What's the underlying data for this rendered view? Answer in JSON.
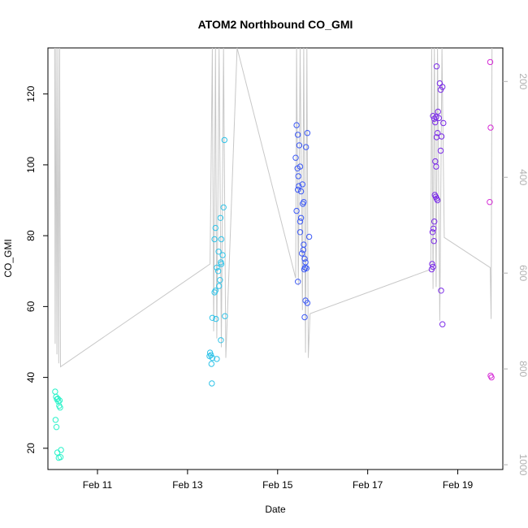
{
  "chart_data": {
    "type": "scatter",
    "title": "ATOM2 Northbound CO_GMI",
    "xlabel": "Date",
    "ylabel": "CO_GMI",
    "x_tick_labels": [
      {
        "day": 11,
        "label": "Feb 11"
      },
      {
        "day": 13,
        "label": "Feb 13"
      },
      {
        "day": 15,
        "label": "Feb 15"
      },
      {
        "day": 17,
        "label": "Feb 17"
      },
      {
        "day": 19,
        "label": "Feb 19"
      }
    ],
    "xlim": [
      9.9,
      20.0
    ],
    "ylim": [
      14,
      133
    ],
    "y_ticks": [
      20,
      40,
      60,
      80,
      100,
      120
    ],
    "y2_label": "",
    "y2_ticks": [
      200,
      400,
      600,
      800,
      1000
    ],
    "y2_lim": [
      1010,
      130
    ],
    "y2_color": "#b0b0b0",
    "grid": false,
    "point_style": "open-circle",
    "series": [
      {
        "color": "#29f2c9",
        "points": [
          [
            10.06,
            36.0
          ],
          [
            10.08,
            34.5
          ],
          [
            10.1,
            33.8
          ],
          [
            10.12,
            34.0
          ],
          [
            10.07,
            28.0
          ],
          [
            10.09,
            26.0
          ],
          [
            10.13,
            33.2
          ],
          [
            10.15,
            32.0
          ],
          [
            10.17,
            31.5
          ],
          [
            10.16,
            33.5
          ],
          [
            10.11,
            18.8
          ],
          [
            10.19,
            19.5
          ],
          [
            10.14,
            17.3
          ],
          [
            10.18,
            17.5
          ]
        ]
      },
      {
        "color": "#2fc3e8",
        "points": [
          [
            13.5,
            47.0
          ],
          [
            13.52,
            46.3
          ],
          [
            13.55,
            45.5
          ],
          [
            13.49,
            46.0
          ],
          [
            13.53,
            43.8
          ],
          [
            13.54,
            38.3
          ],
          [
            13.65,
            45.2
          ],
          [
            13.55,
            56.8
          ],
          [
            13.63,
            56.5
          ],
          [
            13.6,
            64.0
          ],
          [
            13.62,
            64.5
          ],
          [
            13.65,
            71.0
          ],
          [
            13.68,
            70.0
          ],
          [
            13.7,
            65.8
          ],
          [
            13.72,
            67.5
          ],
          [
            13.74,
            72.5
          ],
          [
            13.75,
            72.0
          ],
          [
            13.78,
            74.5
          ],
          [
            13.6,
            79.0
          ],
          [
            13.62,
            82.2
          ],
          [
            13.75,
            79.0
          ],
          [
            13.73,
            85.0
          ],
          [
            13.8,
            88.0
          ],
          [
            13.82,
            107.0
          ],
          [
            13.74,
            50.5
          ],
          [
            13.83,
            57.3
          ],
          [
            13.69,
            75.5
          ]
        ]
      },
      {
        "color": "#3d5af5",
        "points": [
          [
            15.4,
            102.0
          ],
          [
            15.42,
            111.2
          ],
          [
            15.45,
            108.5
          ],
          [
            15.48,
            105.5
          ],
          [
            15.5,
            99.5
          ],
          [
            15.44,
            99.0
          ],
          [
            15.46,
            96.8
          ],
          [
            15.47,
            94.0
          ],
          [
            15.45,
            93.0
          ],
          [
            15.55,
            94.5
          ],
          [
            15.52,
            92.5
          ],
          [
            15.58,
            89.5
          ],
          [
            15.56,
            89.0
          ],
          [
            15.63,
            105.0
          ],
          [
            15.66,
            109.0
          ],
          [
            15.42,
            87.0
          ],
          [
            15.5,
            84.0
          ],
          [
            15.52,
            85.0
          ],
          [
            15.5,
            81.0
          ],
          [
            15.58,
            77.5
          ],
          [
            15.54,
            75.0
          ],
          [
            15.6,
            73.5
          ],
          [
            15.62,
            72.5
          ],
          [
            15.59,
            70.5
          ],
          [
            15.61,
            71.0
          ],
          [
            15.64,
            70.8
          ],
          [
            15.57,
            76.0
          ],
          [
            15.7,
            79.7
          ],
          [
            15.45,
            67.0
          ],
          [
            15.62,
            61.7
          ],
          [
            15.66,
            61.0
          ],
          [
            15.6,
            57.0
          ]
        ]
      },
      {
        "color": "#7a2ae8",
        "points": [
          [
            18.53,
            127.8
          ],
          [
            18.6,
            123.0
          ],
          [
            18.62,
            121.2
          ],
          [
            18.66,
            122.0
          ],
          [
            18.45,
            113.8
          ],
          [
            18.48,
            113.0
          ],
          [
            18.5,
            112.0
          ],
          [
            18.52,
            113.5
          ],
          [
            18.56,
            115.0
          ],
          [
            18.58,
            113.2
          ],
          [
            18.68,
            111.8
          ],
          [
            18.55,
            109.0
          ],
          [
            18.53,
            107.8
          ],
          [
            18.64,
            108.0
          ],
          [
            18.62,
            104.0
          ],
          [
            18.5,
            101.0
          ],
          [
            18.52,
            99.5
          ],
          [
            18.49,
            91.5
          ],
          [
            18.51,
            91.0
          ],
          [
            18.53,
            90.5
          ],
          [
            18.48,
            84.0
          ],
          [
            18.46,
            82.0
          ],
          [
            18.44,
            81.0
          ],
          [
            18.47,
            78.5
          ],
          [
            18.43,
            72.0
          ],
          [
            18.45,
            71.2
          ],
          [
            18.42,
            70.5
          ],
          [
            18.63,
            64.5
          ],
          [
            18.66,
            55.0
          ],
          [
            18.55,
            90.0
          ]
        ]
      },
      {
        "color": "#d62bd6",
        "points": [
          [
            19.72,
            129.0
          ],
          [
            19.73,
            110.5
          ],
          [
            19.71,
            89.5
          ],
          [
            19.73,
            40.5
          ],
          [
            19.75,
            40.0
          ]
        ]
      }
    ],
    "line": {
      "color": "#c8c8c8",
      "points": [
        [
          10.05,
          133
        ],
        [
          10.06,
          49.5
        ],
        [
          10.08,
          133
        ],
        [
          10.1,
          46.5
        ],
        [
          10.12,
          133
        ],
        [
          10.14,
          44.0
        ],
        [
          10.16,
          133
        ],
        [
          10.18,
          43.0
        ],
        [
          13.5,
          72.0
        ],
        [
          13.55,
          133
        ],
        [
          13.58,
          53.0
        ],
        [
          13.62,
          133
        ],
        [
          13.65,
          51.0
        ],
        [
          13.7,
          133
        ],
        [
          13.75,
          48.5
        ],
        [
          13.8,
          133
        ],
        [
          13.85,
          45.5
        ],
        [
          14.1,
          133
        ],
        [
          15.4,
          68.0
        ],
        [
          15.42,
          133
        ],
        [
          15.46,
          66.0
        ],
        [
          15.5,
          133
        ],
        [
          15.55,
          59.0
        ],
        [
          15.58,
          133
        ],
        [
          15.62,
          47.0
        ],
        [
          15.65,
          133
        ],
        [
          15.68,
          45.5
        ],
        [
          15.72,
          58.0
        ],
        [
          18.4,
          70.5
        ],
        [
          18.42,
          133
        ],
        [
          18.45,
          65.0
        ],
        [
          18.48,
          133
        ],
        [
          18.52,
          65.5
        ],
        [
          18.55,
          133
        ],
        [
          18.6,
          56.0
        ],
        [
          18.65,
          133
        ],
        [
          18.7,
          79.5
        ],
        [
          19.72,
          71.0
        ],
        [
          19.74,
          56.5
        ],
        [
          19.76,
          133
        ]
      ]
    }
  }
}
